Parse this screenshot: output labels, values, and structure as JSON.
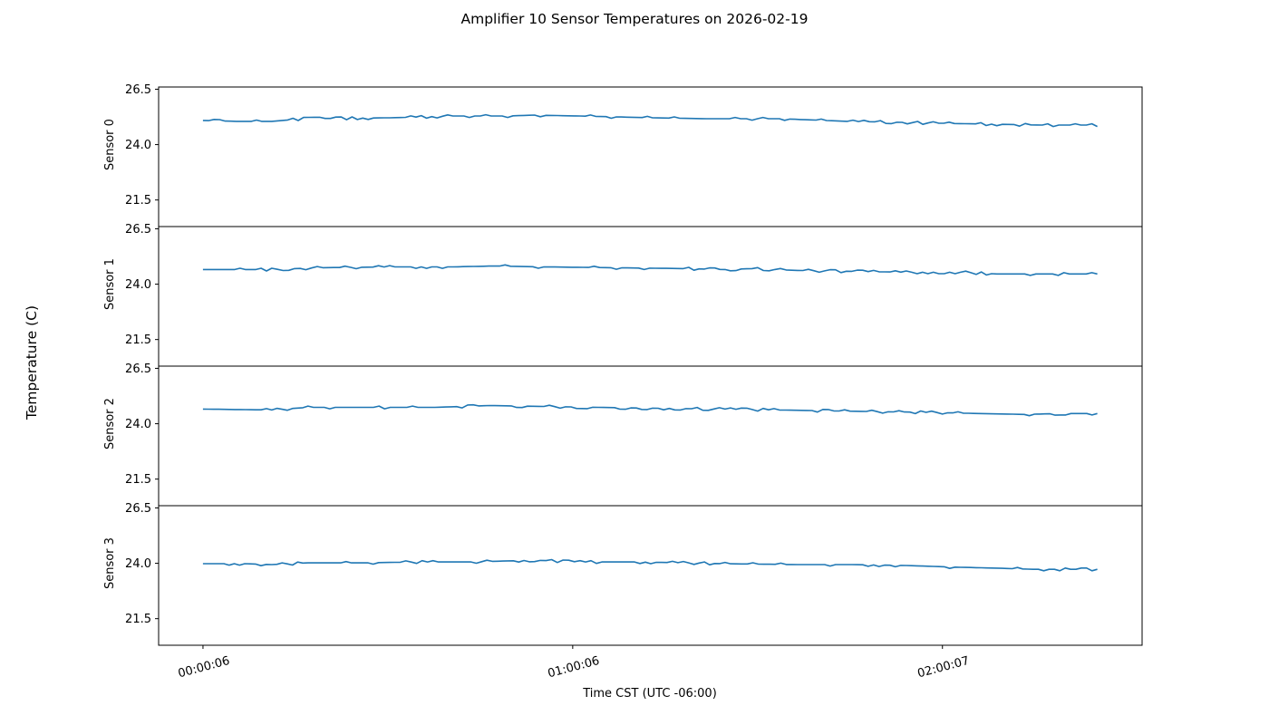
{
  "chart_data": {
    "type": "line",
    "title": "Amplifier 10 Sensor Temperatures on 2026-02-19",
    "ylabel": "Temperature (C)",
    "xlabel": "Time CST (UTC -06:00)",
    "x_ticks": [
      {
        "label": "00:00:06",
        "hours": 0.0
      },
      {
        "label": "01:00:06",
        "hours": 1.0
      },
      {
        "label": "02:00:07",
        "hours": 2.0
      }
    ],
    "x_range_hours": [
      -0.12,
      2.54
    ],
    "ylim": [
      20.3,
      26.6
    ],
    "y_ticks": [
      26.5,
      24.0,
      21.5
    ],
    "grid": false,
    "legend": "none",
    "line_color": "#1f77b4",
    "x_unit": "hours since 00:00:06",
    "panels": [
      {
        "name": "Sensor 0",
        "x": [
          0.0,
          0.09,
          0.186,
          0.272,
          0.505,
          0.676,
          0.824,
          0.897,
          1.02,
          1.118,
          1.216,
          1.363,
          1.485,
          1.559,
          1.743,
          1.877,
          1.975,
          2.147,
          2.27,
          2.419
        ],
        "y": [
          25.09,
          25.05,
          25.05,
          25.17,
          25.21,
          25.29,
          25.29,
          25.33,
          25.29,
          25.25,
          25.21,
          25.17,
          25.17,
          25.17,
          25.05,
          25.01,
          24.97,
          24.92,
          24.88,
          24.88
        ]
      },
      {
        "name": "Sensor 1",
        "x": [
          0.0,
          0.186,
          0.309,
          0.505,
          0.676,
          0.787,
          0.922,
          1.118,
          1.314,
          1.412,
          1.485,
          1.608,
          1.755,
          1.902,
          2.049,
          2.147,
          2.419
        ],
        "y": [
          24.66,
          24.66,
          24.74,
          24.78,
          24.78,
          24.82,
          24.78,
          24.74,
          24.7,
          24.66,
          24.7,
          24.62,
          24.58,
          24.54,
          24.54,
          24.46,
          24.46
        ]
      },
      {
        "name": "Sensor 2",
        "x": [
          0.0,
          0.186,
          0.284,
          0.431,
          0.627,
          0.775,
          0.922,
          1.069,
          1.216,
          1.412,
          1.559,
          1.706,
          1.853,
          2.0,
          2.098,
          2.221,
          2.319,
          2.419
        ],
        "y": [
          24.66,
          24.62,
          24.74,
          24.74,
          24.74,
          24.82,
          24.78,
          24.74,
          24.7,
          24.66,
          24.62,
          24.58,
          24.54,
          24.5,
          24.46,
          24.42,
          24.46,
          24.46
        ]
      },
      {
        "name": "Sensor 3",
        "x": [
          0.0,
          0.113,
          0.186,
          0.284,
          0.431,
          0.578,
          0.725,
          0.897,
          1.02,
          1.167,
          1.314,
          1.412,
          1.608,
          1.755,
          1.902,
          2.049,
          2.147,
          2.245,
          2.419
        ],
        "y": [
          23.98,
          23.98,
          23.94,
          24.02,
          24.02,
          24.06,
          24.06,
          24.14,
          24.06,
          24.06,
          24.02,
          23.98,
          23.94,
          23.94,
          23.9,
          23.82,
          23.78,
          23.73,
          23.73
        ]
      }
    ]
  },
  "labels": {
    "title": "Amplifier 10 Sensor Temperatures on 2026-02-19",
    "ylabel": "Temperature (C)",
    "xlabel": "Time CST (UTC -06:00)"
  }
}
